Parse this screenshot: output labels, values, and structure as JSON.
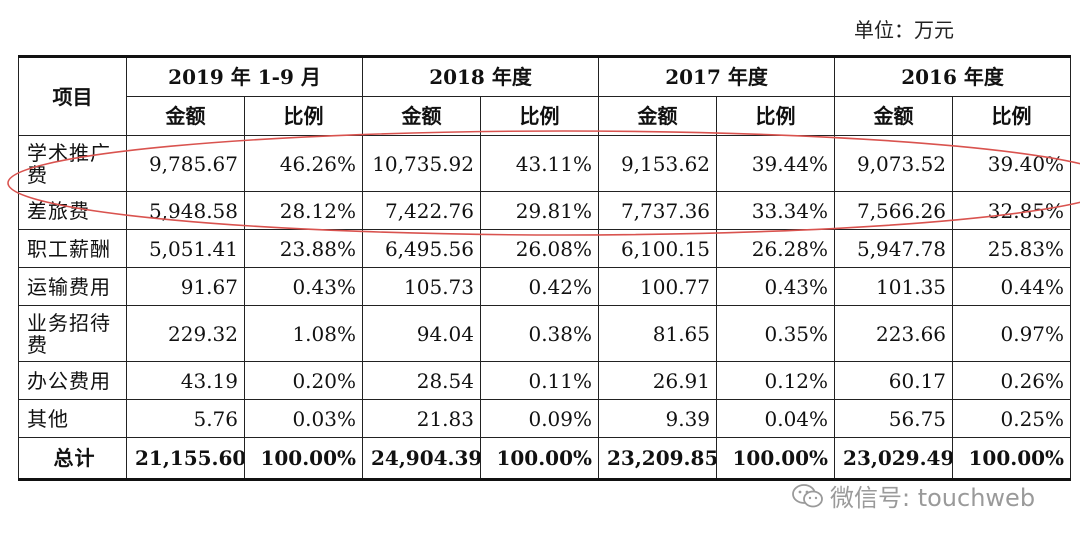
{
  "unit_label": "单位：万元",
  "header": {
    "item_label": "项目",
    "periods": [
      "2019 年 1-9 月",
      "2018 年度",
      "2017 年度",
      "2016 年度"
    ],
    "amount_label": "金额",
    "ratio_label": "比例"
  },
  "rows": [
    {
      "label": "学术推广费",
      "values": [
        "9,785.67",
        "46.26%",
        "10,735.92",
        "43.11%",
        "9,153.62",
        "39.44%",
        "9,073.52",
        "39.40%"
      ]
    },
    {
      "label": "差旅费",
      "values": [
        "5,948.58",
        "28.12%",
        "7,422.76",
        "29.81%",
        "7,737.36",
        "33.34%",
        "7,566.26",
        "32.85%"
      ]
    },
    {
      "label": "职工薪酬",
      "values": [
        "5,051.41",
        "23.88%",
        "6,495.56",
        "26.08%",
        "6,100.15",
        "26.28%",
        "5,947.78",
        "25.83%"
      ]
    },
    {
      "label": "运输费用",
      "values": [
        "91.67",
        "0.43%",
        "105.73",
        "0.42%",
        "100.77",
        "0.43%",
        "101.35",
        "0.44%"
      ]
    },
    {
      "label": "业务招待费",
      "values": [
        "229.32",
        "1.08%",
        "94.04",
        "0.38%",
        "81.65",
        "0.35%",
        "223.66",
        "0.97%"
      ]
    },
    {
      "label": "办公费用",
      "values": [
        "43.19",
        "0.20%",
        "28.54",
        "0.11%",
        "26.91",
        "0.12%",
        "60.17",
        "0.26%"
      ]
    },
    {
      "label": "其他",
      "values": [
        "5.76",
        "0.03%",
        "21.83",
        "0.09%",
        "9.39",
        "0.04%",
        "56.75",
        "0.25%"
      ]
    }
  ],
  "total": {
    "label": "总计",
    "values": [
      "21,155.60",
      "100.00%",
      "24,904.39",
      "100.00%",
      "23,209.85",
      "100.00%",
      "23,029.49",
      "100.00%"
    ]
  },
  "watermark": {
    "text": "微信号: touchweb",
    "icon": "wechat-icon"
  },
  "annotation_color": "#d9534f"
}
